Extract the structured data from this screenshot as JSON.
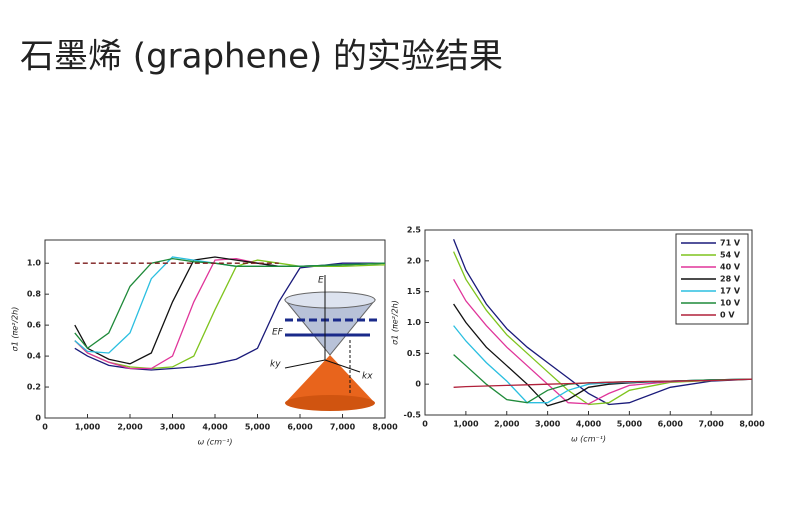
{
  "title": "石墨烯 (graphene) 的实验结果",
  "inset": {
    "labels": [
      "E",
      "EF",
      "ky",
      "kx"
    ]
  },
  "chart_data": [
    {
      "type": "line",
      "xlabel": "ω (cm⁻¹)",
      "ylabel": "σ1 (πe²/2h)",
      "x": [
        700,
        1000,
        1500,
        2000,
        2500,
        3000,
        3500,
        4000,
        4500,
        5000,
        5500,
        6000,
        7000,
        8000
      ],
      "xlim": [
        0,
        8000
      ],
      "ylim": [
        0,
        1.15
      ],
      "xticks": [
        0,
        {
          "value": 1000,
          "label": "1,000"
        },
        {
          "value": 2000,
          "label": "2,000"
        },
        {
          "value": 3000,
          "label": "3,000"
        },
        {
          "value": 4000,
          "label": "4,000"
        },
        {
          "value": 5000,
          "label": "5,000"
        },
        {
          "value": 6000,
          "label": "6,000"
        },
        {
          "value": 7000,
          "label": "7,000"
        },
        {
          "value": 8000,
          "label": "8,000"
        }
      ],
      "yticks": [
        0,
        0.2,
        0.4,
        0.6,
        0.8,
        {
          "value": 1.0,
          "label": "1.0"
        }
      ],
      "series": [
        {
          "color": "#1a1a7a",
          "values": [
            0.45,
            0.4,
            0.34,
            0.32,
            0.31,
            0.32,
            0.33,
            0.35,
            0.38,
            0.45,
            0.75,
            0.97,
            1.0,
            1.0
          ]
        },
        {
          "color": "#7fc41e",
          "values": [
            0.5,
            0.42,
            0.36,
            0.33,
            0.32,
            0.33,
            0.4,
            0.7,
            0.98,
            1.02,
            1.0,
            0.98,
            0.98,
            0.99
          ]
        },
        {
          "color": "#e0359a",
          "values": [
            0.5,
            0.42,
            0.36,
            0.32,
            0.32,
            0.4,
            0.75,
            1.02,
            1.03,
            1.0,
            0.98,
            0.98,
            0.99,
            1.0
          ]
        },
        {
          "color": "#111111",
          "values": [
            0.6,
            0.45,
            0.38,
            0.35,
            0.42,
            0.75,
            1.02,
            1.04,
            1.02,
            1.0,
            0.98,
            0.98,
            0.99,
            1.0
          ]
        },
        {
          "color": "#2bbfe0",
          "values": [
            0.5,
            0.43,
            0.42,
            0.55,
            0.9,
            1.04,
            1.02,
            1.0,
            0.98,
            0.98,
            0.98,
            0.98,
            0.99,
            1.0
          ]
        },
        {
          "color": "#1f8a3a",
          "values": [
            0.55,
            0.45,
            0.55,
            0.85,
            1.0,
            1.03,
            1.01,
            1.0,
            0.98,
            0.98,
            0.98,
            0.98,
            0.99,
            1.0
          ]
        },
        {
          "color": "#7a1a1a",
          "dashed": true,
          "values": [
            1.0,
            1.0,
            1.0,
            1.0,
            1.0,
            1.0,
            1.0,
            1.0,
            1.0,
            1.0,
            1.0,
            null,
            null,
            null
          ]
        }
      ]
    },
    {
      "type": "line",
      "xlabel": "ω (cm⁻¹)",
      "ylabel": "σ1 (πe²/2h)",
      "legend": "upper right",
      "x": [
        700,
        1000,
        1500,
        2000,
        2500,
        3000,
        3500,
        4000,
        4500,
        5000,
        6000,
        7000,
        8000
      ],
      "xlim": [
        0,
        8000
      ],
      "ylim": [
        -0.5,
        2.5
      ],
      "xticks": [
        0,
        {
          "value": 1000,
          "label": "1,000"
        },
        {
          "value": 2000,
          "label": "2,000"
        },
        {
          "value": 3000,
          "label": "3,000"
        },
        {
          "value": 4000,
          "label": "4,000"
        },
        {
          "value": 5000,
          "label": "5,000"
        },
        {
          "value": 6000,
          "label": "6,000"
        },
        {
          "value": 7000,
          "label": "7,000"
        },
        {
          "value": 8000,
          "label": "8,000"
        }
      ],
      "yticks": [
        -0.5,
        0,
        0.5,
        {
          "value": 1.0,
          "label": "1.0"
        },
        1.5,
        {
          "value": 2.0,
          "label": "2.0"
        },
        2.5
      ],
      "series": [
        {
          "name": "71 V",
          "color": "#1a1a7a",
          "values": [
            2.35,
            1.85,
            1.3,
            0.9,
            0.6,
            0.35,
            0.1,
            -0.15,
            -0.33,
            -0.3,
            -0.05,
            0.05,
            0.08
          ]
        },
        {
          "name": "54 V",
          "color": "#7fc41e",
          "values": [
            2.15,
            1.7,
            1.2,
            0.8,
            0.5,
            0.2,
            -0.1,
            -0.33,
            -0.3,
            -0.1,
            0.03,
            0.06,
            0.08
          ]
        },
        {
          "name": "40 V",
          "color": "#e0359a",
          "values": [
            1.7,
            1.35,
            0.95,
            0.6,
            0.3,
            0.0,
            -0.3,
            -0.32,
            -0.15,
            -0.02,
            0.04,
            0.07,
            0.08
          ]
        },
        {
          "name": "28 V",
          "color": "#111111",
          "values": [
            1.3,
            1.0,
            0.6,
            0.3,
            0.0,
            -0.35,
            -0.25,
            -0.05,
            0.0,
            0.02,
            0.05,
            0.07,
            0.08
          ]
        },
        {
          "name": "17 V",
          "color": "#2bbfe0",
          "values": [
            0.95,
            0.7,
            0.35,
            0.05,
            -0.3,
            -0.3,
            -0.1,
            0.0,
            0.02,
            0.03,
            0.05,
            0.07,
            0.08
          ]
        },
        {
          "name": "10 V",
          "color": "#1f8a3a",
          "values": [
            0.48,
            0.3,
            0.0,
            -0.25,
            -0.3,
            -0.1,
            0.0,
            0.02,
            0.03,
            0.04,
            0.05,
            0.07,
            0.08
          ]
        },
        {
          "name": "0 V",
          "color": "#b0203a",
          "values": [
            -0.05,
            -0.04,
            -0.03,
            -0.02,
            -0.01,
            0.0,
            0.01,
            0.02,
            0.03,
            0.04,
            0.05,
            0.06,
            0.08
          ]
        }
      ]
    }
  ]
}
